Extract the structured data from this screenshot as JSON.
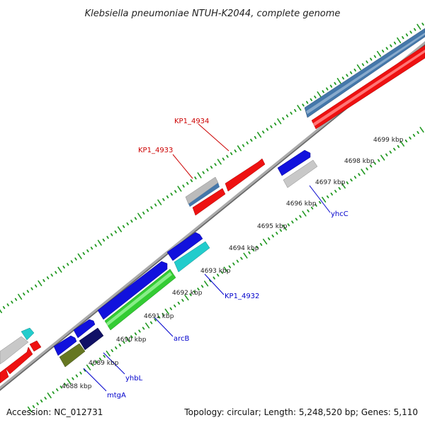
{
  "title": "Klebsiella pneumoniae NTUH-K2044, complete genome",
  "footer": {
    "accession": "Accession: NC_012731",
    "topology": "Topology: circular; Length: 5,248,520 bp; Genes: 5,110"
  },
  "kbp_labels": [
    "4688 kbp",
    "4689 kbp",
    "4690 kbp",
    "4691 kbp",
    "4692 kbp",
    "4693 kbp",
    "4694 kbp",
    "4695 kbp",
    "4696 kbp",
    "4697 kbp",
    "4698 kbp",
    "4699 kbp"
  ],
  "gene_labels": [
    {
      "name": "KP1_4934",
      "color": "#cc0000"
    },
    {
      "name": "KP1_4933",
      "color": "#cc0000"
    },
    {
      "name": "yhcC",
      "color": "#0000cc"
    },
    {
      "name": "KP1_4932",
      "color": "#0000cc"
    },
    {
      "name": "arcB",
      "color": "#0000cc"
    },
    {
      "name": "yhbL",
      "color": "#0000cc"
    },
    {
      "name": "mtgA",
      "color": "#0000cc"
    }
  ],
  "colors": {
    "red": "#ee1111",
    "blue": "#1111dd",
    "steel_blue": "#4477aa",
    "light_gray": "#c8c8c8",
    "cyan": "#22cccc",
    "green": "#33cc33",
    "olive": "#667722",
    "navy": "#111166",
    "backbone": "#888888",
    "tick": "#229922"
  }
}
